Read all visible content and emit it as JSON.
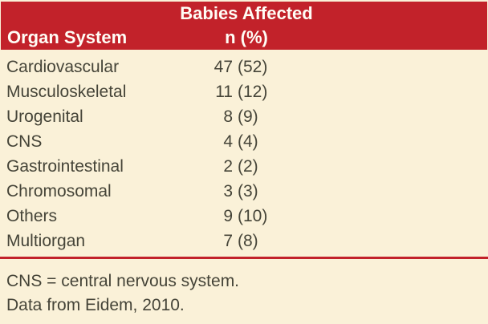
{
  "figure": {
    "header": {
      "organ_system": "Organ System",
      "babies_affected": "Babies Affected",
      "n_pct": "n (%)"
    },
    "rows": [
      {
        "organ": "Cardiovascular",
        "n": "47",
        "pct": "(52)"
      },
      {
        "organ": "Musculoskeletal",
        "n": "11",
        "pct": "(12)"
      },
      {
        "organ": "Urogenital",
        "n": "8",
        "pct": "(9)"
      },
      {
        "organ": "CNS",
        "n": "4",
        "pct": "(4)"
      },
      {
        "organ": "Gastrointestinal",
        "n": "2",
        "pct": "(2)"
      },
      {
        "organ": "Chromosomal",
        "n": "3",
        "pct": "(3)"
      },
      {
        "organ": "Others",
        "n": "9",
        "pct": "(10)"
      },
      {
        "organ": "Multiorgan",
        "n": "7",
        "pct": "(8)"
      }
    ],
    "footnotes": {
      "line1": "CNS = central nervous system.",
      "line2": "Data from Eidem, 2010."
    },
    "colors": {
      "header_bg": "#C2222A",
      "body_bg": "#FAF1D8",
      "divider": "#C2222A",
      "header_text": "#FFFDF6",
      "body_text": "#454438"
    }
  },
  "chart_data": {
    "type": "table",
    "title": "Babies Affected",
    "columns": [
      "Organ System",
      "n (%)"
    ],
    "rows": [
      [
        "Cardiovascular",
        "47 (52)"
      ],
      [
        "Musculoskeletal",
        "11 (12)"
      ],
      [
        "Urogenital",
        "8 (9)"
      ],
      [
        "CNS",
        "4 (4)"
      ],
      [
        "Gastrointestinal",
        "2 (2)"
      ],
      [
        "Chromosomal",
        "3 (3)"
      ],
      [
        "Others",
        "9 (10)"
      ],
      [
        "Multiorgan",
        "7 (8)"
      ]
    ],
    "footnotes": [
      "CNS = central nervous system.",
      "Data from Eidem, 2010."
    ]
  }
}
